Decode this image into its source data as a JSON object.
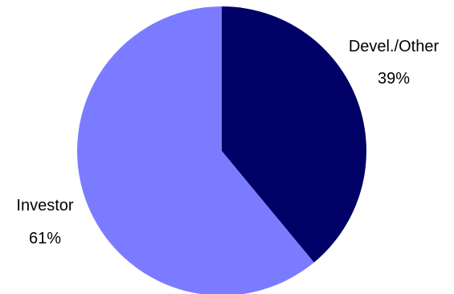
{
  "chart_data": {
    "type": "pie",
    "start_angle_deg": 0,
    "direction": "clockwise",
    "slices": [
      {
        "label": "Devel./Other",
        "value": 39,
        "value_label": "39%",
        "color": "#000066"
      },
      {
        "label": "Investor",
        "value": 61,
        "value_label": "61%",
        "color": "#7b7bff"
      }
    ],
    "legend": "none"
  }
}
